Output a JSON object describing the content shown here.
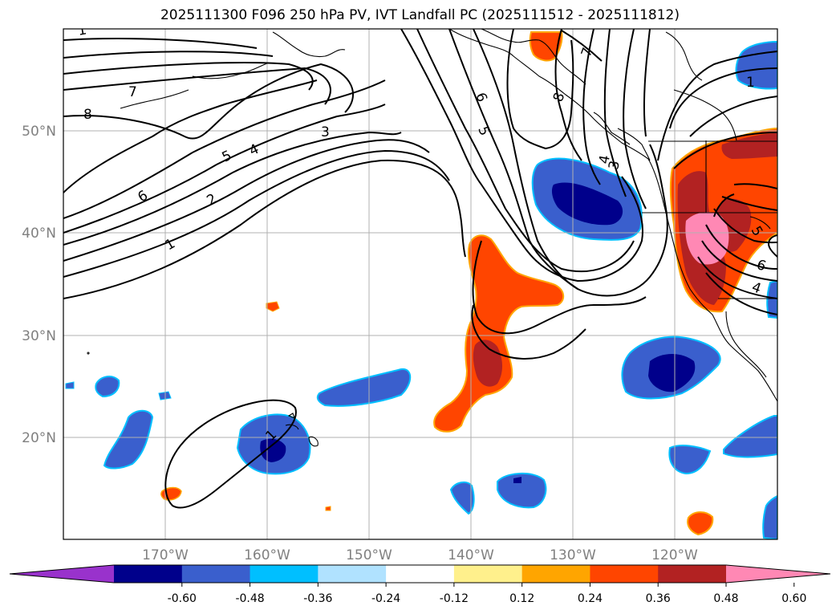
{
  "title": "2025111300 F096 250 hPa PV, IVT Landfall PC (2025111512 - 2025111812)",
  "map": {
    "lon_labels": [
      "170°W",
      "160°W",
      "150°W",
      "140°W",
      "130°W",
      "120°W"
    ],
    "lat_labels": [
      "50°N",
      "40°N",
      "30°N",
      "20°N"
    ],
    "gridlines": true,
    "extent": {
      "lon": [
        -180,
        -110
      ],
      "lat": [
        10,
        60
      ]
    }
  },
  "contours": {
    "variable": "250 hPa PV",
    "color": "#000000",
    "labels": [
      "8",
      "7",
      "6",
      "5",
      "4",
      "3",
      "2",
      "1",
      "6",
      "5",
      "8",
      "7",
      "4",
      "3",
      "1",
      "5",
      "6",
      "4",
      "1",
      "4"
    ]
  },
  "colorbar": {
    "ticks": [
      "-0.60",
      "-0.48",
      "-0.36",
      "-0.24",
      "-0.12",
      "0.12",
      "0.24",
      "0.36",
      "0.48",
      "0.60"
    ],
    "colors": [
      "#9932cc",
      "#00008b",
      "#3a5fcd",
      "#00bfff",
      "#b0e2ff",
      "#ffffff",
      "#fff08c",
      "#ffa500",
      "#ff4500",
      "#b22222",
      "#ff88b4"
    ],
    "extend": "both"
  }
}
